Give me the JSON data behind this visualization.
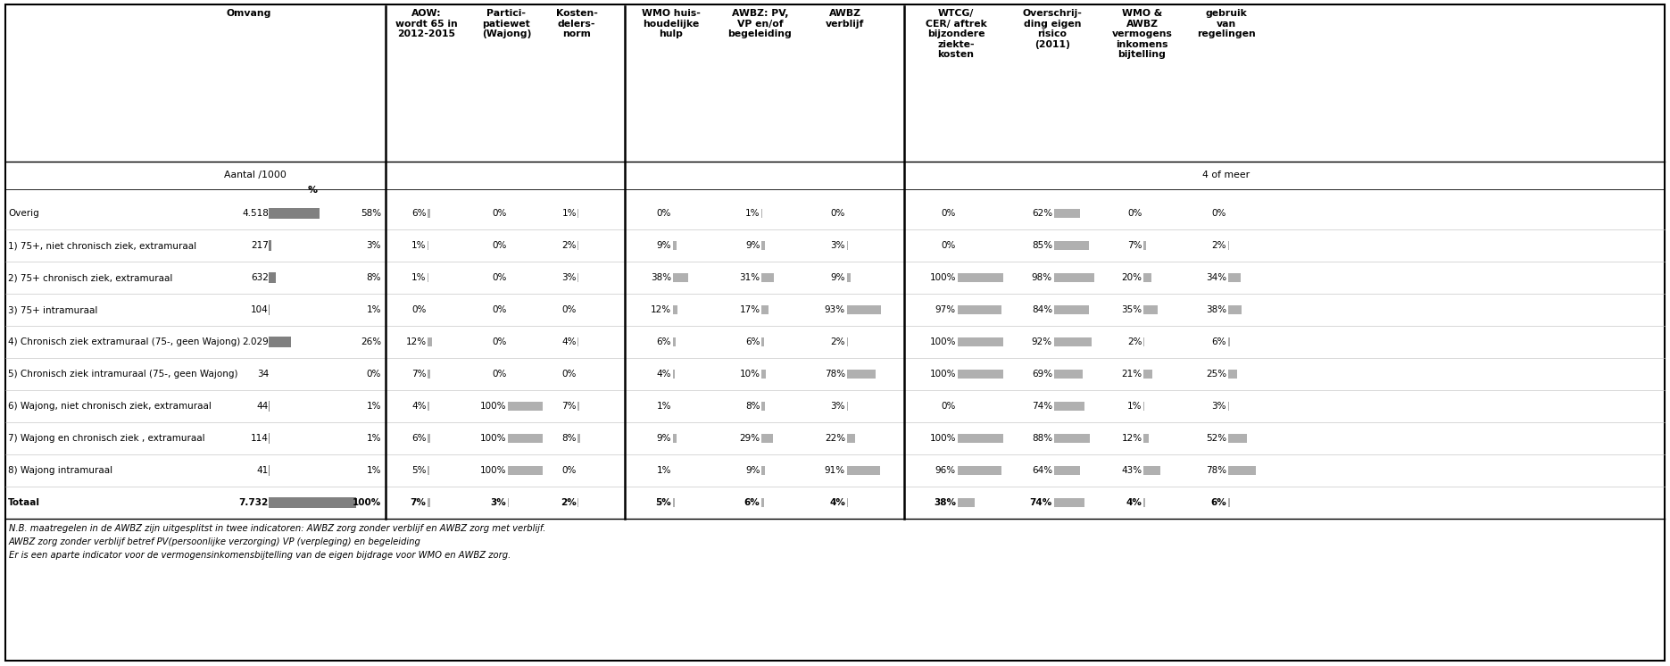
{
  "col_headers": [
    "Omvang",
    "AOW:\nwordt 65 in\n2012-2015",
    "Partici-\npatiewet\n(Wajong)",
    "Kosten-\ndelers-\nnorm",
    "WMO huis-\nhoudelijke\nhulp",
    "AWBZ: PV,\nVP en/of\nbegeleiding",
    "AWBZ\nverblijf",
    "WTCG/\nCER/ aftrek\nbijzondere\nziekte-\nkosten",
    "Overschrij-\nding eigen\nrisico\n(2011)",
    "WMO &\nAWBZ\nvermogens\ninkomens\nbijtelling",
    "gebruik\nvan\nregelingen"
  ],
  "rows": [
    {
      "label": "Overig",
      "aantal": "4.518",
      "pct": 58,
      "pct_str": "58%",
      "aow": 6,
      "aow_str": "6%",
      "parti": 0,
      "parti_str": "0%",
      "kosten": 1,
      "kosten_str": "1%",
      "wmo_huis": 0,
      "wmo_huis_str": "0%",
      "awbz_pv": 1,
      "awbz_pv_str": "1%",
      "awbz_verb": 0,
      "awbz_verb_str": "0%",
      "wtcg": 0,
      "wtcg_str": "0%",
      "eigen": 62,
      "eigen_str": "62%",
      "wmo_awbz": 0,
      "wmo_awbz_str": "0%",
      "gebruik": 0,
      "gebruik_str": "0%",
      "is_bold": false
    },
    {
      "label": "1) 75+, niet chronisch ziek, extramuraal",
      "aantal": "217",
      "pct": 3,
      "pct_str": "3%",
      "aow": 1,
      "aow_str": "1%",
      "parti": 0,
      "parti_str": "0%",
      "kosten": 2,
      "kosten_str": "2%",
      "wmo_huis": 9,
      "wmo_huis_str": "9%",
      "awbz_pv": 9,
      "awbz_pv_str": "9%",
      "awbz_verb": 3,
      "awbz_verb_str": "3%",
      "wtcg": 0,
      "wtcg_str": "0%",
      "eigen": 85,
      "eigen_str": "85%",
      "wmo_awbz": 7,
      "wmo_awbz_str": "7%",
      "gebruik": 2,
      "gebruik_str": "2%",
      "is_bold": false
    },
    {
      "label": "2) 75+ chronisch ziek, extramuraal",
      "aantal": "632",
      "pct": 8,
      "pct_str": "8%",
      "aow": 1,
      "aow_str": "1%",
      "parti": 0,
      "parti_str": "0%",
      "kosten": 3,
      "kosten_str": "3%",
      "wmo_huis": 38,
      "wmo_huis_str": "38%",
      "awbz_pv": 31,
      "awbz_pv_str": "31%",
      "awbz_verb": 9,
      "awbz_verb_str": "9%",
      "wtcg": 100,
      "wtcg_str": "100%",
      "eigen": 98,
      "eigen_str": "98%",
      "wmo_awbz": 20,
      "wmo_awbz_str": "20%",
      "gebruik": 34,
      "gebruik_str": "34%",
      "is_bold": false
    },
    {
      "label": "3) 75+ intramuraal",
      "aantal": "104",
      "pct": 1,
      "pct_str": "1%",
      "aow": 0,
      "aow_str": "0%",
      "parti": 0,
      "parti_str": "0%",
      "kosten": 0,
      "kosten_str": "0%",
      "wmo_huis": 12,
      "wmo_huis_str": "12%",
      "awbz_pv": 17,
      "awbz_pv_str": "17%",
      "awbz_verb": 93,
      "awbz_verb_str": "93%",
      "wtcg": 97,
      "wtcg_str": "97%",
      "eigen": 84,
      "eigen_str": "84%",
      "wmo_awbz": 35,
      "wmo_awbz_str": "35%",
      "gebruik": 38,
      "gebruik_str": "38%",
      "is_bold": false
    },
    {
      "label": "4) Chronisch ziek extramuraal (75-, geen Wajong)",
      "aantal": "2.029",
      "pct": 26,
      "pct_str": "26%",
      "aow": 12,
      "aow_str": "12%",
      "parti": 0,
      "parti_str": "0%",
      "kosten": 4,
      "kosten_str": "4%",
      "wmo_huis": 6,
      "wmo_huis_str": "6%",
      "awbz_pv": 6,
      "awbz_pv_str": "6%",
      "awbz_verb": 2,
      "awbz_verb_str": "2%",
      "wtcg": 100,
      "wtcg_str": "100%",
      "eigen": 92,
      "eigen_str": "92%",
      "wmo_awbz": 2,
      "wmo_awbz_str": "2%",
      "gebruik": 6,
      "gebruik_str": "6%",
      "is_bold": false
    },
    {
      "label": "5) Chronisch ziek intramuraal (75-, geen Wajong)",
      "aantal": "34",
      "pct": 0,
      "pct_str": "0%",
      "aow": 7,
      "aow_str": "7%",
      "parti": 0,
      "parti_str": "0%",
      "kosten": 0,
      "kosten_str": "0%",
      "wmo_huis": 4,
      "wmo_huis_str": "4%",
      "awbz_pv": 10,
      "awbz_pv_str": "10%",
      "awbz_verb": 78,
      "awbz_verb_str": "78%",
      "wtcg": 100,
      "wtcg_str": "100%",
      "eigen": 69,
      "eigen_str": "69%",
      "wmo_awbz": 21,
      "wmo_awbz_str": "21%",
      "gebruik": 25,
      "gebruik_str": "25%",
      "is_bold": false
    },
    {
      "label": "6) Wajong, niet chronisch ziek, extramuraal",
      "aantal": "44",
      "pct": 1,
      "pct_str": "1%",
      "aow": 4,
      "aow_str": "4%",
      "parti": 100,
      "parti_str": "100%",
      "kosten": 7,
      "kosten_str": "7%",
      "wmo_huis": 1,
      "wmo_huis_str": "1%",
      "awbz_pv": 8,
      "awbz_pv_str": "8%",
      "awbz_verb": 3,
      "awbz_verb_str": "3%",
      "wtcg": 0,
      "wtcg_str": "0%",
      "eigen": 74,
      "eigen_str": "74%",
      "wmo_awbz": 1,
      "wmo_awbz_str": "1%",
      "gebruik": 3,
      "gebruik_str": "3%",
      "is_bold": false
    },
    {
      "label": "7) Wajong en chronisch ziek , extramuraal",
      "aantal": "114",
      "pct": 1,
      "pct_str": "1%",
      "aow": 6,
      "aow_str": "6%",
      "parti": 100,
      "parti_str": "100%",
      "kosten": 8,
      "kosten_str": "8%",
      "wmo_huis": 9,
      "wmo_huis_str": "9%",
      "awbz_pv": 29,
      "awbz_pv_str": "29%",
      "awbz_verb": 22,
      "awbz_verb_str": "22%",
      "wtcg": 100,
      "wtcg_str": "100%",
      "eigen": 88,
      "eigen_str": "88%",
      "wmo_awbz": 12,
      "wmo_awbz_str": "12%",
      "gebruik": 52,
      "gebruik_str": "52%",
      "is_bold": false
    },
    {
      "label": "8) Wajong intramuraal",
      "aantal": "41",
      "pct": 1,
      "pct_str": "1%",
      "aow": 5,
      "aow_str": "5%",
      "parti": 100,
      "parti_str": "100%",
      "kosten": 0,
      "kosten_str": "0%",
      "wmo_huis": 1,
      "wmo_huis_str": "1%",
      "awbz_pv": 9,
      "awbz_pv_str": "9%",
      "awbz_verb": 91,
      "awbz_verb_str": "91%",
      "wtcg": 96,
      "wtcg_str": "96%",
      "eigen": 64,
      "eigen_str": "64%",
      "wmo_awbz": 43,
      "wmo_awbz_str": "43%",
      "gebruik": 78,
      "gebruik_str": "78%",
      "is_bold": false
    },
    {
      "label": "Totaal",
      "aantal": "7.732",
      "pct": 100,
      "pct_str": "100%",
      "aow": 7,
      "aow_str": "7%",
      "parti": 3,
      "parti_str": "3%",
      "kosten": 2,
      "kosten_str": "2%",
      "wmo_huis": 5,
      "wmo_huis_str": "5%",
      "awbz_pv": 6,
      "awbz_pv_str": "6%",
      "awbz_verb": 4,
      "awbz_verb_str": "4%",
      "wtcg": 38,
      "wtcg_str": "38%",
      "eigen": 74,
      "eigen_str": "74%",
      "wmo_awbz": 4,
      "wmo_awbz_str": "4%",
      "gebruik": 6,
      "gebruik_str": "6%",
      "is_bold": true
    }
  ],
  "footnotes": [
    "N.B. maatregelen in de AWBZ zijn uitgesplitst in twee indicatoren: AWBZ zorg zonder verblijf en AWBZ zorg met verblijf.",
    "AWBZ zorg zonder verblijf betref PV(persoonlijke verzorging) VP (verpleging) en begeleiding",
    "Er is een aparte indicator voor de vermogensinkomensbijtelling van de eigen bijdrage voor WMO en AWBZ zorg."
  ],
  "bar_color_dark": "#808080",
  "bar_color_light": "#b0b0b0",
  "bg_color": "#ffffff"
}
